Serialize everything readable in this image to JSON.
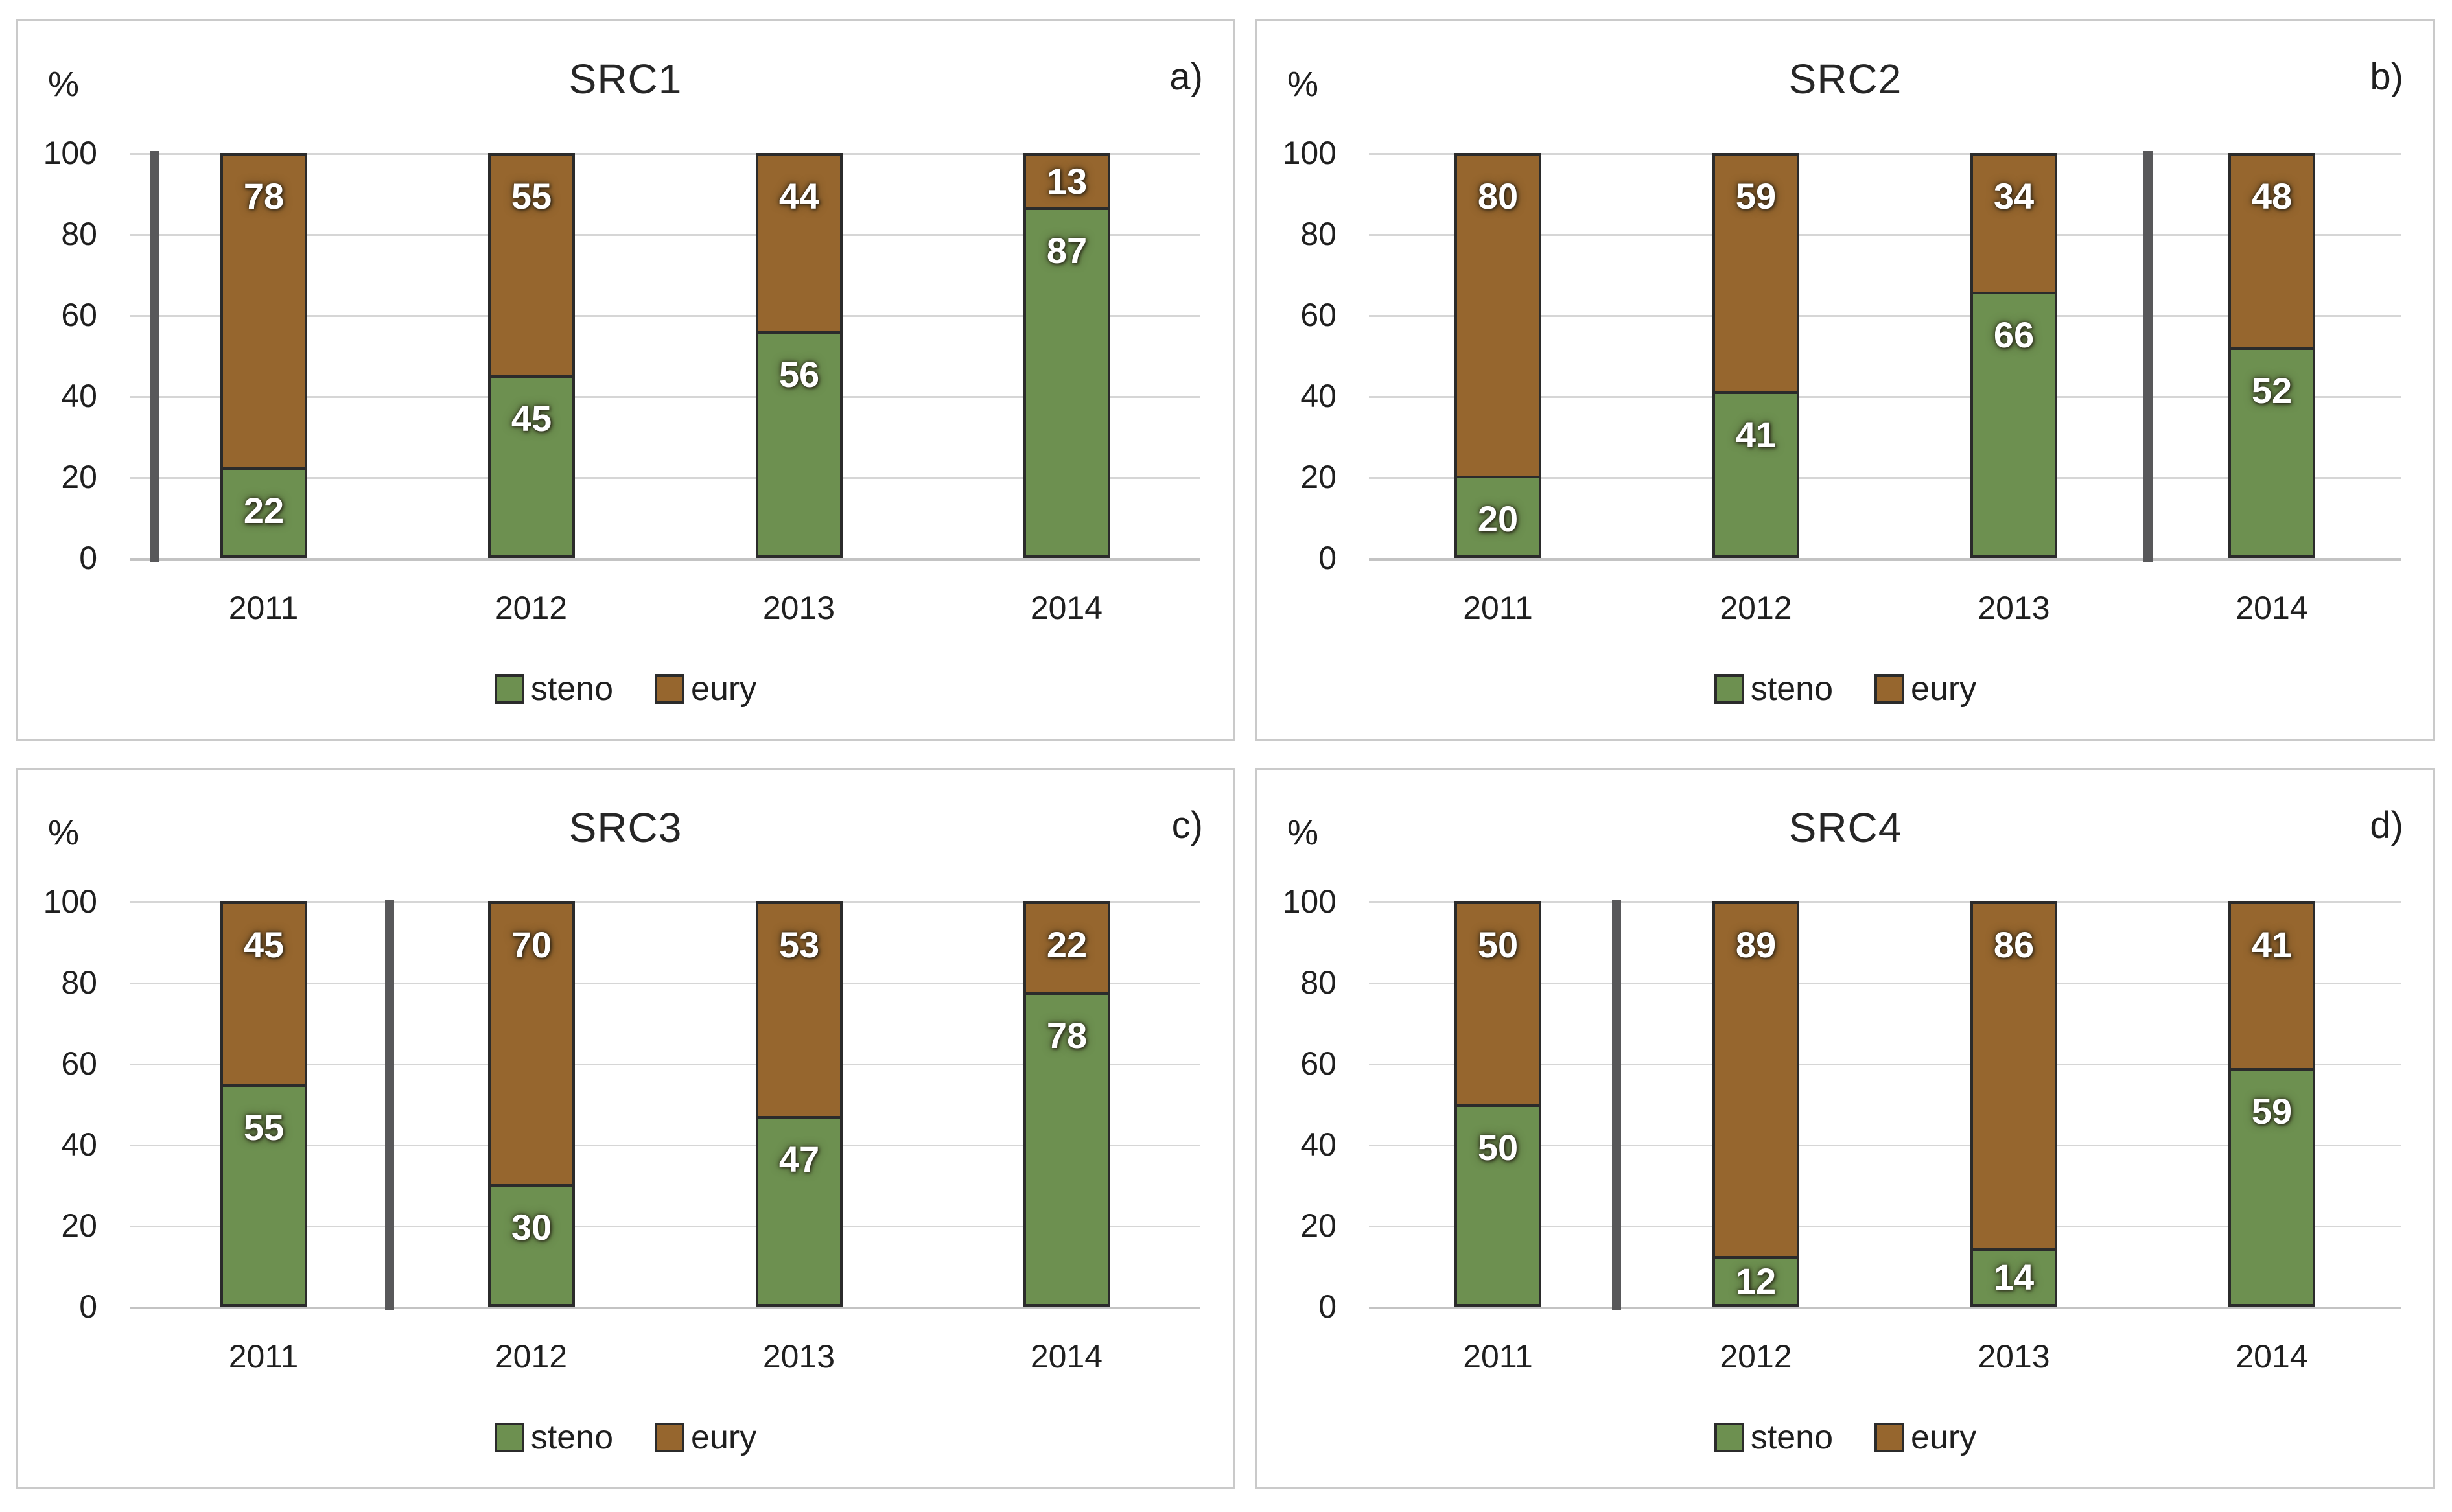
{
  "figure": {
    "background": "#ffffff",
    "colors": {
      "steno": "#6d9050",
      "eury": "#96662e",
      "bar_border": "#2b2b2b",
      "grid": "#d6d6d6",
      "axis_line": "#c3c3c3",
      "divider": "#58585a",
      "text": "#1f1f1f",
      "value_label": "#ffffff"
    }
  },
  "chart_data": [
    {
      "type": "bar",
      "stacked": true,
      "title": "SRC1",
      "panel_letter": "a)",
      "ylabel": "%",
      "ylim": [
        0,
        100
      ],
      "yticks": [
        "0",
        "20",
        "40",
        "60",
        "80",
        "100"
      ],
      "grid": true,
      "legend_position": "bottom",
      "categories": [
        "2011",
        "2012",
        "2013",
        "2014"
      ],
      "series": [
        {
          "name": "steno",
          "values": [
            22,
            45,
            56,
            87
          ]
        },
        {
          "name": "eury",
          "values": [
            78,
            55,
            44,
            13
          ]
        }
      ],
      "divider_x_fraction": 0.023
    },
    {
      "type": "bar",
      "stacked": true,
      "title": "SRC2",
      "panel_letter": "b)",
      "ylabel": "%",
      "ylim": [
        0,
        100
      ],
      "yticks": [
        "0",
        "20",
        "40",
        "60",
        "80",
        "100"
      ],
      "grid": true,
      "legend_position": "bottom",
      "categories": [
        "2011",
        "2012",
        "2013",
        "2014"
      ],
      "series": [
        {
          "name": "steno",
          "values": [
            20,
            41,
            66,
            52
          ]
        },
        {
          "name": "eury",
          "values": [
            80,
            59,
            34,
            48
          ]
        }
      ],
      "divider_x_fraction": 0.755
    },
    {
      "type": "bar",
      "stacked": true,
      "title": "SRC3",
      "panel_letter": "c)",
      "ylabel": "%",
      "ylim": [
        0,
        100
      ],
      "yticks": [
        "0",
        "20",
        "40",
        "60",
        "80",
        "100"
      ],
      "grid": true,
      "legend_position": "bottom",
      "categories": [
        "2011",
        "2012",
        "2013",
        "2014"
      ],
      "series": [
        {
          "name": "steno",
          "values": [
            55,
            30,
            47,
            78
          ]
        },
        {
          "name": "eury",
          "values": [
            45,
            70,
            53,
            22
          ]
        }
      ],
      "divider_x_fraction": 0.243
    },
    {
      "type": "bar",
      "stacked": true,
      "title": "SRC4",
      "panel_letter": "d)",
      "ylabel": "%",
      "ylim": [
        0,
        100
      ],
      "yticks": [
        "0",
        "20",
        "40",
        "60",
        "80",
        "100"
      ],
      "grid": true,
      "legend_position": "bottom",
      "categories": [
        "2011",
        "2012",
        "2013",
        "2014"
      ],
      "series": [
        {
          "name": "steno",
          "values": [
            50,
            12,
            14,
            59
          ]
        },
        {
          "name": "eury",
          "values": [
            50,
            89,
            86,
            41
          ]
        }
      ],
      "divider_x_fraction": 0.24
    }
  ]
}
